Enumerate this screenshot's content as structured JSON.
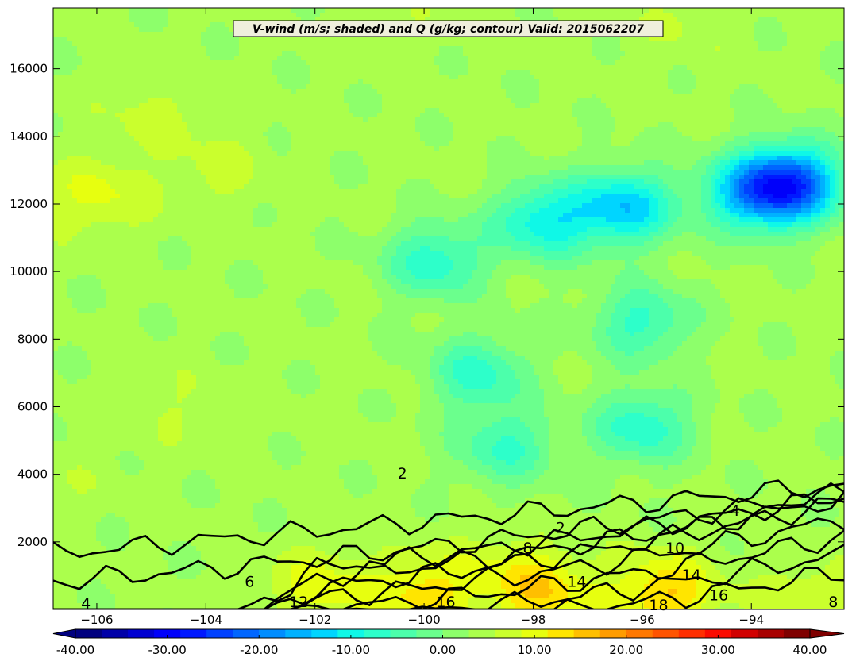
{
  "chart_data": {
    "type": "heatmap",
    "title": "V-wind (m/s; shaded) and Q (g/kg; contour) Valid: 2015062207",
    "xlabel": "",
    "ylabel": "",
    "xlim": [
      -106.8,
      -92.3
    ],
    "ylim": [
      0,
      17800
    ],
    "x_ticks": [
      -106,
      -104,
      -102,
      -100,
      -98,
      -96,
      -94
    ],
    "x_tick_labels": [
      "−106",
      "−104",
      "−102",
      "−100",
      "−98",
      "−96",
      "−94"
    ],
    "y_ticks": [
      2000,
      4000,
      6000,
      8000,
      10000,
      12000,
      14000,
      16000
    ],
    "y_tick_labels": [
      "2000",
      "4000",
      "6000",
      "8000",
      "10000",
      "12000",
      "14000",
      "16000"
    ],
    "colorbar": {
      "range": [
        -40,
        40
      ],
      "extend": "both",
      "ticks": [
        -40,
        -30,
        -20,
        -10,
        0,
        10,
        20,
        30,
        40
      ],
      "tick_labels": [
        "-40.00",
        "-30.00",
        "-20.00",
        "-10.00",
        "0.00",
        "10.00",
        "20.00",
        "30.00",
        "40.00"
      ],
      "colors": [
        "#00007f",
        "#0000a8",
        "#0000d1",
        "#0000fa",
        "#0019ff",
        "#0041ff",
        "#0066ff",
        "#008dff",
        "#00b1ff",
        "#00d5ff",
        "#0ff8e7",
        "#2dffca",
        "#4cffab",
        "#6bff8d",
        "#8dff6b",
        "#abff4c",
        "#caff2d",
        "#e7ff0f",
        "#ffe500",
        "#ffbf00",
        "#ff9c00",
        "#ff7800",
        "#ff5400",
        "#ff2f00",
        "#fa0b00",
        "#d10000",
        "#a80000",
        "#7f0000"
      ]
    },
    "vwind_features": [
      {
        "x": -93.25,
        "y": 12600,
        "value": -24
      },
      {
        "x": -94.0,
        "y": 12300,
        "value": -14
      },
      {
        "x": -96.3,
        "y": 11900,
        "value": -15
      },
      {
        "x": -97.8,
        "y": 11500,
        "value": -12
      },
      {
        "x": -99.8,
        "y": 10300,
        "value": -9
      },
      {
        "x": -96.0,
        "y": 8500,
        "value": -8
      },
      {
        "x": -99.0,
        "y": 7000,
        "value": -8
      },
      {
        "x": -96.0,
        "y": 5400,
        "value": -9
      },
      {
        "x": -98.5,
        "y": 4800,
        "value": -7
      },
      {
        "x": -106.0,
        "y": 12200,
        "value": 10
      },
      {
        "x": -105.0,
        "y": 14600,
        "value": 7
      },
      {
        "x": -103.8,
        "y": 12900,
        "value": 7
      },
      {
        "x": -95.3,
        "y": 17300,
        "value": 6
      },
      {
        "x": -100.5,
        "y": 17300,
        "value": 5
      },
      {
        "x": -104.6,
        "y": 6000,
        "value": 6
      },
      {
        "x": -106.5,
        "y": 4000,
        "value": 5
      },
      {
        "x": -101.6,
        "y": 5500,
        "value": 4
      },
      {
        "x": -100.0,
        "y": 500,
        "value": 14
      },
      {
        "x": -101.9,
        "y": 600,
        "value": 11
      },
      {
        "x": -97.8,
        "y": 500,
        "value": 14
      },
      {
        "x": -95.6,
        "y": 450,
        "value": 16
      },
      {
        "x": -93.0,
        "y": 300,
        "value": 9
      },
      {
        "x": -98.5,
        "y": 1200,
        "value": 7
      }
    ],
    "q_contours": {
      "levels": [
        2,
        4,
        6,
        8,
        10,
        12,
        14,
        16,
        18
      ],
      "labels": [
        {
          "text": "2",
          "x": -100.4,
          "y": 4000
        },
        {
          "text": "2",
          "x": -97.5,
          "y": 2400
        },
        {
          "text": "4",
          "x": -106.2,
          "y": 150
        },
        {
          "text": "4",
          "x": -94.3,
          "y": 2900
        },
        {
          "text": "6",
          "x": -103.2,
          "y": 800
        },
        {
          "text": "8",
          "x": -98.1,
          "y": 1800
        },
        {
          "text": "10",
          "x": -95.4,
          "y": 1800
        },
        {
          "text": "12",
          "x": -102.3,
          "y": 200
        },
        {
          "text": "14",
          "x": -97.2,
          "y": 800
        },
        {
          "text": "14",
          "x": -95.1,
          "y": 1000
        },
        {
          "text": "16",
          "x": -99.6,
          "y": 200
        },
        {
          "text": "16",
          "x": -94.6,
          "y": 400
        },
        {
          "text": "18",
          "x": -95.7,
          "y": 100
        },
        {
          "text": "8",
          "x": -92.5,
          "y": 200
        }
      ]
    }
  }
}
